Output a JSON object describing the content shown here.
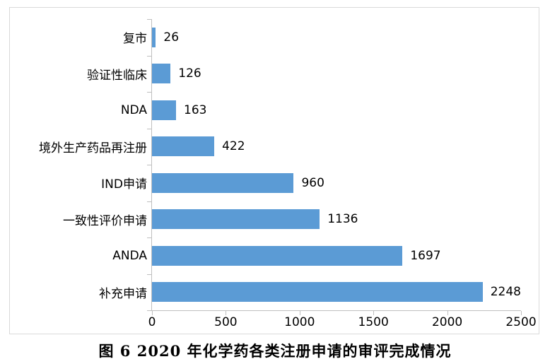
{
  "chart_data": {
    "type": "bar",
    "orientation": "horizontal",
    "categories": [
      "复市",
      "验证性临床",
      "NDA",
      "境外生产药品再注册",
      "IND申请",
      "一致性评价申请",
      "ANDA",
      "补充申请"
    ],
    "values": [
      26,
      126,
      163,
      422,
      960,
      1136,
      1697,
      2248
    ],
    "data_labels": [
      "26",
      "126",
      "163",
      "422",
      "960",
      "1136",
      "1697",
      "2248"
    ],
    "x_ticks": [
      0,
      500,
      1000,
      1500,
      2000,
      2500
    ],
    "x_tick_labels": [
      "0",
      "500",
      "1000",
      "1500",
      "2000",
      "2500"
    ],
    "xlim": [
      0,
      2500
    ],
    "grid": false,
    "legend": "none",
    "bar_color": "#5b9bd5",
    "axis_color": "#bfbfbf",
    "border_color": "#d9d9d9",
    "title": "图 6  2020 年化学药各类注册申请的审评完成情况"
  },
  "caption": {
    "text": "图 6  2020 年化学药各类注册申请的审评完成情况"
  }
}
